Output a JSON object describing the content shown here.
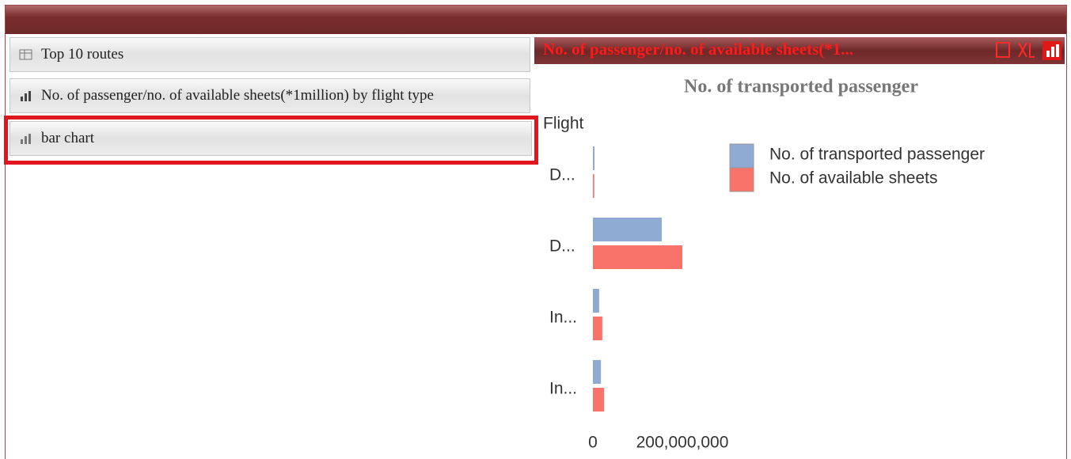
{
  "sidebar": {
    "items": [
      "Top 10 routes",
      "No. of passenger/no. of available sheets(*1million) by flight type",
      "bar chart"
    ]
  },
  "panel": {
    "title": "No. of passenger/no. of available sheets(*1..."
  },
  "chart_data": {
    "type": "hbar",
    "title": "No. of transported passenger",
    "y_label": "Flight",
    "categories": [
      "D...",
      "D...",
      "In...",
      "In..."
    ],
    "series": [
      {
        "name": "No. of transported passenger",
        "color": "#8faad3",
        "values": [
          3500000,
          154000000,
          14000000,
          18000000
        ]
      },
      {
        "name": "No. of available sheets",
        "color": "#f8736a",
        "values": [
          3000000,
          200000000,
          21000000,
          25000000
        ]
      }
    ],
    "xlim": [
      0,
      800000000
    ],
    "xticks": [
      0,
      {
        "value": 200000000,
        "label": "200,000,000"
      }
    ],
    "grid": false,
    "legend": "top-right"
  }
}
